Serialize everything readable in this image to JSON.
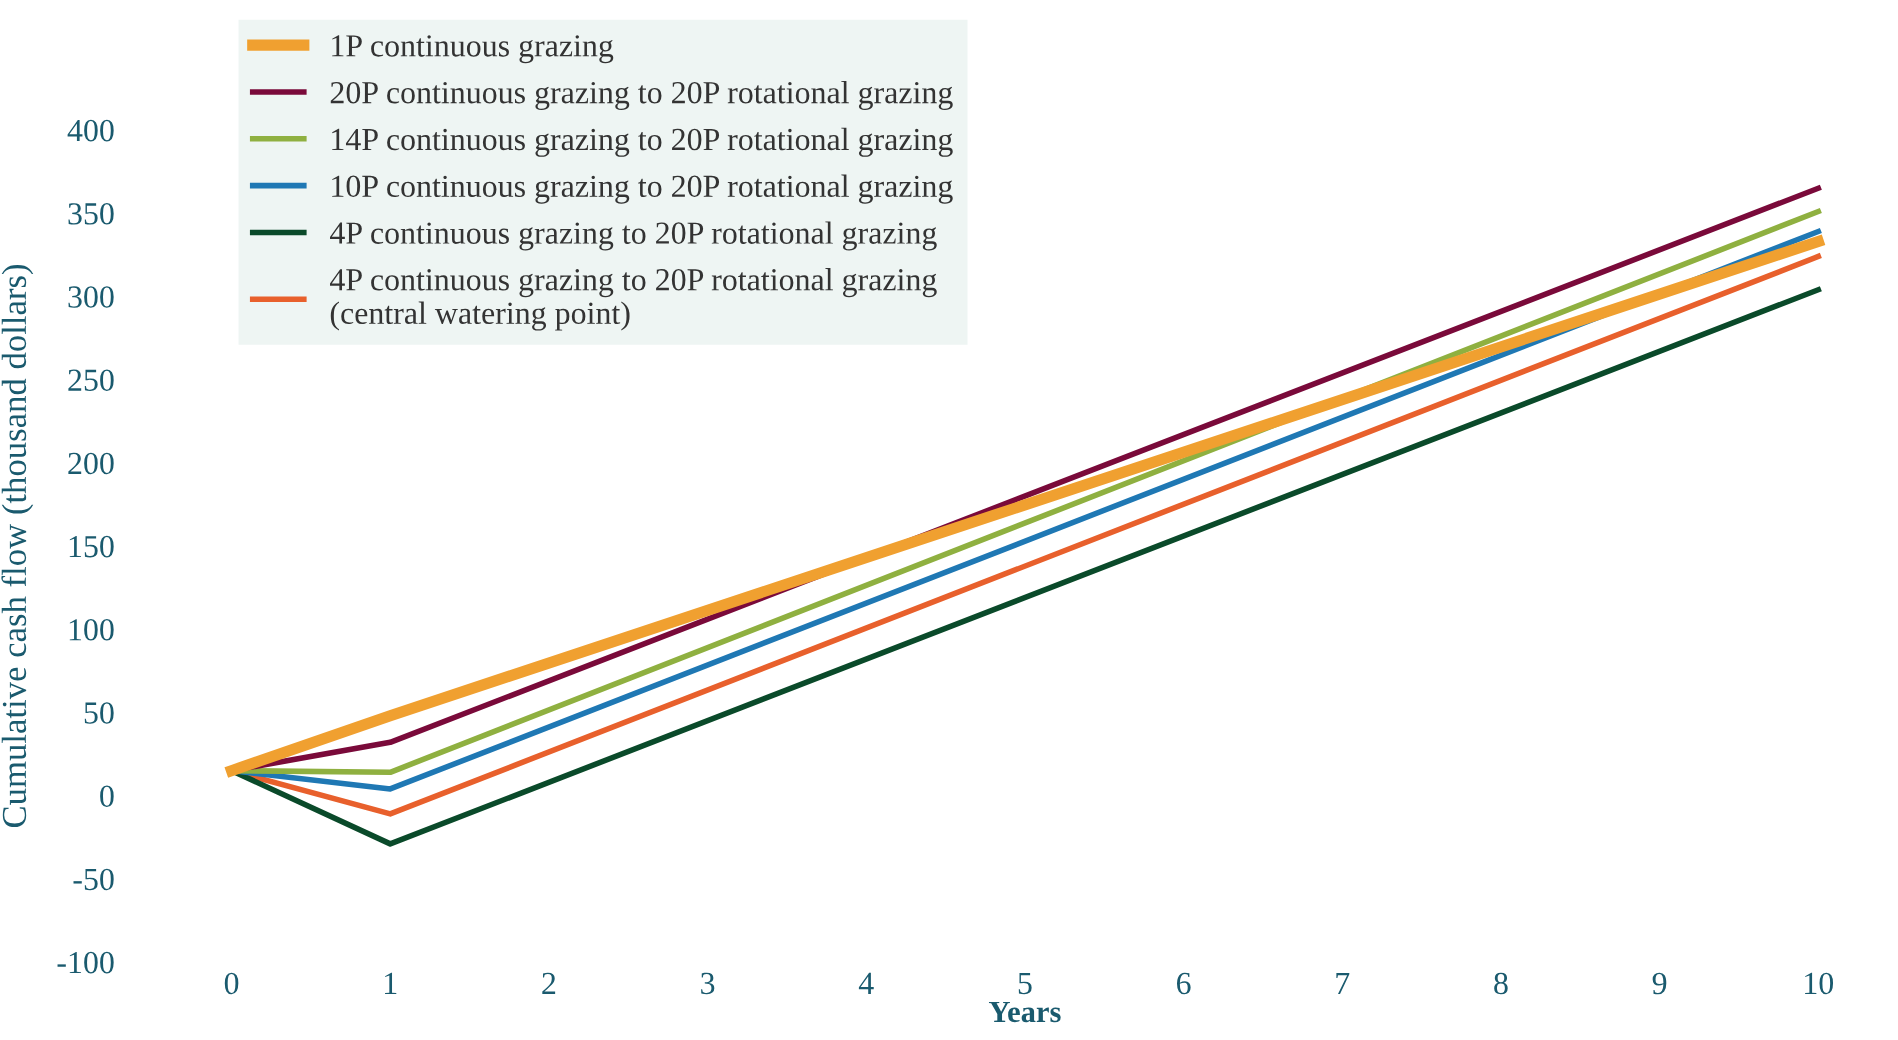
{
  "chart_data": {
    "type": "line",
    "xlabel": "Years",
    "ylabel": "Cumulative cash flow (thousand dollars)",
    "x": [
      0,
      1,
      10
    ],
    "xlim": [
      0,
      10
    ],
    "xticks": [
      0,
      1,
      2,
      3,
      4,
      5,
      6,
      7,
      8,
      9,
      10
    ],
    "ylim": [
      -100,
      400
    ],
    "yticks": [
      -100,
      -50,
      0,
      50,
      100,
      150,
      200,
      250,
      300,
      350,
      400
    ],
    "grid": false,
    "legend": "top left",
    "marker": "none",
    "line_style": "solid",
    "series": [
      {
        "name": "1P continuous grazing",
        "color": "#f0a030",
        "values": [
          15,
          48,
          333
        ]
      },
      {
        "name": "20P continuous grazing to 20P rotational grazing",
        "color": "#7a0a3a",
        "values": [
          15,
          32,
          365
        ]
      },
      {
        "name": "14P continuous grazing to 20P rotational grazing",
        "color": "#8fb040",
        "values": [
          15,
          14,
          351
        ]
      },
      {
        "name": "10P continuous grazing to 20P rotational grazing",
        "color": "#1f78b4",
        "values": [
          15,
          4,
          339
        ]
      },
      {
        "name": "4P continuous grazing to 20P rotational grazing",
        "color": "#0a4a2a",
        "values": [
          15,
          -29,
          304
        ]
      },
      {
        "name": "4P continuous grazing to 20P rotational grazing\n(central watering point)",
        "color": "#e8602c",
        "values": [
          15,
          -11,
          324
        ]
      }
    ]
  }
}
